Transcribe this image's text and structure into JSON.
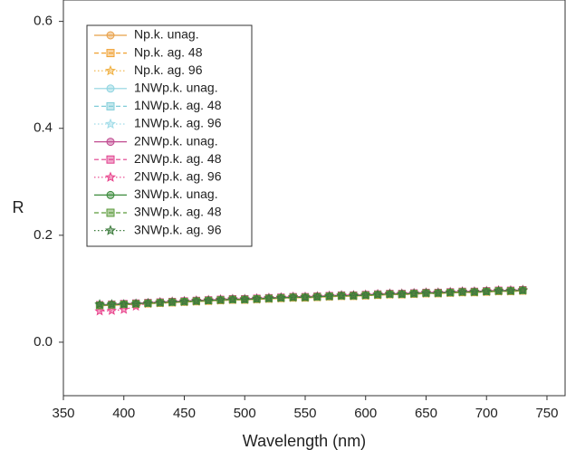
{
  "chart_data": {
    "type": "line",
    "xlabel": "Wavelength (nm)",
    "ylabel": "R",
    "xlim": [
      350,
      765
    ],
    "ylim": [
      -0.1,
      0.64
    ],
    "xticks": [
      350,
      400,
      450,
      500,
      550,
      600,
      650,
      700,
      750
    ],
    "yticks": [
      {
        "value": 0,
        "label": "0.0"
      },
      0.2,
      0.4,
      0.6
    ],
    "legend": "upper left",
    "x": [
      380,
      390,
      400,
      410,
      420,
      430,
      440,
      450,
      460,
      470,
      480,
      490,
      500,
      510,
      520,
      530,
      540,
      550,
      560,
      570,
      580,
      590,
      600,
      610,
      620,
      630,
      640,
      650,
      660,
      670,
      680,
      690,
      700,
      710,
      720,
      730
    ],
    "series": [
      {
        "name": "Np.k. unag.",
        "color": "#e8a048",
        "marker": "circle",
        "dash": "solid",
        "values": [
          0.068,
          0.069,
          0.07,
          0.071,
          0.072,
          0.073,
          0.074,
          0.075,
          0.076,
          0.077,
          0.078,
          0.079,
          0.079,
          0.08,
          0.081,
          0.082,
          0.083,
          0.083,
          0.084,
          0.085,
          0.086,
          0.086,
          0.087,
          0.088,
          0.089,
          0.089,
          0.09,
          0.091,
          0.091,
          0.092,
          0.093,
          0.093,
          0.094,
          0.095,
          0.095,
          0.096
        ]
      },
      {
        "name": "Np.k. ag. 48",
        "color": "#f0a030",
        "marker": "square",
        "dash": "dashed",
        "values": [
          0.068,
          0.069,
          0.07,
          0.071,
          0.072,
          0.073,
          0.074,
          0.075,
          0.076,
          0.077,
          0.078,
          0.079,
          0.079,
          0.08,
          0.081,
          0.082,
          0.083,
          0.083,
          0.084,
          0.085,
          0.086,
          0.086,
          0.087,
          0.088,
          0.089,
          0.089,
          0.09,
          0.091,
          0.091,
          0.092,
          0.093,
          0.093,
          0.094,
          0.095,
          0.095,
          0.096
        ]
      },
      {
        "name": "Np.k. ag. 96",
        "color": "#f0b040",
        "marker": "star",
        "dash": "dotted",
        "values": [
          0.07,
          0.07,
          0.07,
          0.071,
          0.072,
          0.073,
          0.074,
          0.075,
          0.076,
          0.077,
          0.078,
          0.079,
          0.079,
          0.08,
          0.081,
          0.082,
          0.083,
          0.083,
          0.084,
          0.085,
          0.086,
          0.086,
          0.087,
          0.088,
          0.089,
          0.089,
          0.09,
          0.091,
          0.091,
          0.092,
          0.093,
          0.093,
          0.094,
          0.095,
          0.095,
          0.096
        ]
      },
      {
        "name": "1NWp.k. unag.",
        "color": "#8fd4e0",
        "marker": "circle",
        "dash": "solid",
        "values": [
          0.069,
          0.07,
          0.071,
          0.072,
          0.073,
          0.074,
          0.075,
          0.076,
          0.077,
          0.078,
          0.079,
          0.08,
          0.08,
          0.081,
          0.082,
          0.083,
          0.084,
          0.084,
          0.085,
          0.086,
          0.087,
          0.087,
          0.088,
          0.089,
          0.09,
          0.09,
          0.091,
          0.092,
          0.092,
          0.093,
          0.094,
          0.094,
          0.095,
          0.096,
          0.096,
          0.097
        ]
      },
      {
        "name": "1NWp.k. ag. 48",
        "color": "#7fccd8",
        "marker": "square",
        "dash": "dashed",
        "values": [
          0.069,
          0.07,
          0.071,
          0.072,
          0.073,
          0.074,
          0.075,
          0.076,
          0.077,
          0.078,
          0.079,
          0.08,
          0.08,
          0.081,
          0.082,
          0.083,
          0.084,
          0.084,
          0.085,
          0.086,
          0.087,
          0.087,
          0.088,
          0.089,
          0.09,
          0.09,
          0.091,
          0.092,
          0.092,
          0.093,
          0.094,
          0.094,
          0.095,
          0.096,
          0.096,
          0.097
        ]
      },
      {
        "name": "1NWp.k. ag. 96",
        "color": "#a0dce8",
        "marker": "star",
        "dash": "dotted",
        "values": [
          0.069,
          0.07,
          0.071,
          0.072,
          0.073,
          0.074,
          0.075,
          0.076,
          0.077,
          0.078,
          0.079,
          0.08,
          0.08,
          0.081,
          0.082,
          0.083,
          0.084,
          0.084,
          0.085,
          0.086,
          0.087,
          0.087,
          0.088,
          0.089,
          0.09,
          0.09,
          0.091,
          0.092,
          0.092,
          0.093,
          0.094,
          0.094,
          0.095,
          0.096,
          0.096,
          0.097
        ]
      },
      {
        "name": "2NWp.k. unag.",
        "color": "#c04a90",
        "marker": "circle",
        "dash": "solid",
        "values": [
          0.07,
          0.071,
          0.072,
          0.073,
          0.074,
          0.075,
          0.076,
          0.077,
          0.078,
          0.079,
          0.08,
          0.081,
          0.081,
          0.082,
          0.083,
          0.084,
          0.085,
          0.085,
          0.086,
          0.087,
          0.088,
          0.088,
          0.089,
          0.09,
          0.091,
          0.091,
          0.092,
          0.093,
          0.093,
          0.094,
          0.095,
          0.095,
          0.096,
          0.097,
          0.097,
          0.098
        ]
      },
      {
        "name": "2NWp.k. ag. 48",
        "color": "#e03c8c",
        "marker": "square",
        "dash": "dashed",
        "values": [
          0.07,
          0.071,
          0.072,
          0.073,
          0.074,
          0.075,
          0.076,
          0.077,
          0.078,
          0.079,
          0.08,
          0.081,
          0.081,
          0.082,
          0.083,
          0.084,
          0.085,
          0.085,
          0.086,
          0.087,
          0.088,
          0.088,
          0.089,
          0.09,
          0.091,
          0.091,
          0.092,
          0.093,
          0.093,
          0.094,
          0.095,
          0.095,
          0.096,
          0.097,
          0.097,
          0.098
        ]
      },
      {
        "name": "2NWp.k. ag. 96",
        "color": "#e8408a",
        "marker": "star",
        "dash": "dotted",
        "values": [
          0.058,
          0.059,
          0.061,
          0.067,
          0.073,
          0.075,
          0.076,
          0.077,
          0.078,
          0.079,
          0.08,
          0.081,
          0.081,
          0.082,
          0.083,
          0.084,
          0.085,
          0.085,
          0.086,
          0.087,
          0.088,
          0.088,
          0.089,
          0.09,
          0.091,
          0.091,
          0.092,
          0.093,
          0.093,
          0.094,
          0.095,
          0.095,
          0.096,
          0.097,
          0.097,
          0.098
        ]
      },
      {
        "name": "3NWp.k. unag.",
        "color": "#3a8a3a",
        "marker": "circle",
        "dash": "solid",
        "values": [
          0.069,
          0.07,
          0.071,
          0.072,
          0.073,
          0.074,
          0.075,
          0.076,
          0.077,
          0.078,
          0.079,
          0.08,
          0.08,
          0.081,
          0.082,
          0.083,
          0.084,
          0.084,
          0.085,
          0.086,
          0.087,
          0.087,
          0.088,
          0.089,
          0.09,
          0.09,
          0.091,
          0.092,
          0.092,
          0.093,
          0.094,
          0.094,
          0.095,
          0.096,
          0.096,
          0.097
        ]
      },
      {
        "name": "3NWp.k. ag. 48",
        "color": "#5a9a3a",
        "marker": "square",
        "dash": "dashed",
        "values": [
          0.069,
          0.07,
          0.071,
          0.072,
          0.073,
          0.074,
          0.075,
          0.076,
          0.077,
          0.078,
          0.079,
          0.08,
          0.08,
          0.081,
          0.082,
          0.083,
          0.084,
          0.084,
          0.085,
          0.086,
          0.087,
          0.087,
          0.088,
          0.089,
          0.09,
          0.09,
          0.091,
          0.092,
          0.092,
          0.093,
          0.094,
          0.094,
          0.095,
          0.096,
          0.096,
          0.097
        ]
      },
      {
        "name": "3NWp.k. ag. 96",
        "color": "#3a7a3a",
        "marker": "star",
        "dash": "dotted",
        "values": [
          0.071,
          0.071,
          0.071,
          0.072,
          0.073,
          0.074,
          0.075,
          0.076,
          0.077,
          0.078,
          0.079,
          0.08,
          0.08,
          0.081,
          0.082,
          0.083,
          0.084,
          0.084,
          0.085,
          0.086,
          0.087,
          0.087,
          0.088,
          0.089,
          0.09,
          0.09,
          0.091,
          0.092,
          0.092,
          0.093,
          0.094,
          0.094,
          0.095,
          0.096,
          0.096,
          0.097
        ]
      }
    ]
  }
}
